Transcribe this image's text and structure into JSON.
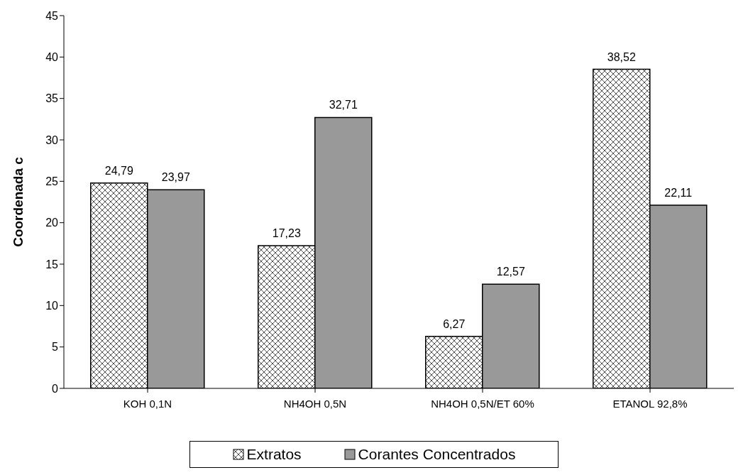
{
  "chart_data": {
    "type": "bar",
    "ylabel": "Coordenada c",
    "categories": [
      "KOH 0,1N",
      "NH4OH 0,5N",
      "NH4OH 0,5N/ET 60%",
      "ETANOL 92,8%"
    ],
    "series": [
      {
        "name": "Extratos",
        "color": "#000000",
        "values": [
          24.79,
          17.23,
          6.27,
          38.52
        ],
        "value_labels": [
          "24,79",
          "17,23",
          "6,27",
          "38,52"
        ]
      },
      {
        "name": "Corantes Concentrados",
        "color": "#999999",
        "values": [
          23.97,
          32.71,
          12.57,
          22.11
        ],
        "value_labels": [
          "23,97",
          "32,71",
          "12,57",
          "22,11"
        ]
      }
    ],
    "ylim": [
      0,
      45
    ],
    "yticks": [
      0,
      5,
      10,
      15,
      20,
      25,
      30,
      35,
      40,
      45
    ],
    "grid": false,
    "legend": "bottom"
  }
}
